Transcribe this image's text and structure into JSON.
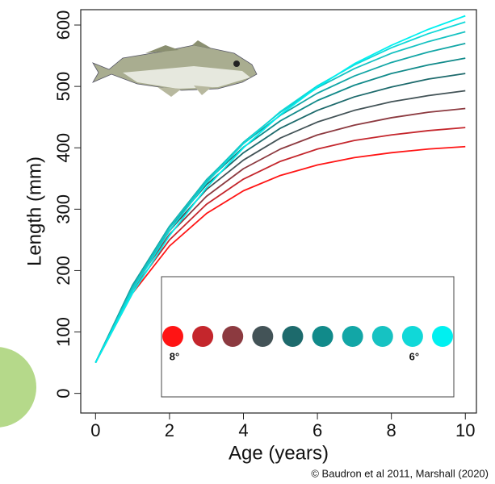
{
  "chart_data": {
    "type": "line",
    "xlabel": "Age (years)",
    "ylabel": "Length (mm)",
    "x": [
      0,
      1,
      2,
      3,
      4,
      5,
      6,
      7,
      8,
      9,
      10
    ],
    "xlim": [
      -0.4,
      10.3
    ],
    "xticks": [
      0,
      2,
      4,
      6,
      8,
      10
    ],
    "ylim": [
      -32,
      625
    ],
    "yticks": [
      0,
      100,
      200,
      300,
      400,
      500,
      600
    ],
    "series": [
      {
        "color": "#ff1414",
        "values": [
          50,
          163,
          240,
          293,
          330,
          355,
          372,
          384,
          392,
          398,
          402
        ]
      },
      {
        "color": "#c4262c",
        "values": [
          50,
          168,
          250,
          308,
          349,
          378,
          398,
          412,
          421,
          428,
          433
        ]
      },
      {
        "color": "#8c3a40",
        "values": [
          50,
          172,
          259,
          321,
          366,
          398,
          421,
          437,
          449,
          458,
          464
        ]
      },
      {
        "color": "#435357",
        "values": [
          50,
          174,
          265,
          332,
          380,
          416,
          442,
          461,
          475,
          485,
          493
        ]
      },
      {
        "color": "#1d6a6c",
        "values": [
          50,
          176,
          270,
          340,
          392,
          432,
          461,
          483,
          499,
          512,
          521
        ]
      },
      {
        "color": "#118a8a",
        "values": [
          50,
          176,
          272,
          345,
          401,
          444,
          477,
          502,
          521,
          535,
          546
        ]
      },
      {
        "color": "#12a6a6",
        "values": [
          50,
          175,
          272,
          348,
          407,
          453,
          489,
          517,
          539,
          556,
          570
        ]
      },
      {
        "color": "#16c2c2",
        "values": [
          50,
          172,
          270,
          347,
          409,
          458,
          498,
          529,
          554,
          573,
          589
        ]
      },
      {
        "color": "#10d8d8",
        "values": [
          50,
          168,
          265,
          343,
          407,
          459,
          501,
          535,
          563,
          586,
          605
        ]
      },
      {
        "color": "#00f0f0",
        "values": [
          50,
          163,
          257,
          335,
          400,
          454,
          499,
          537,
          567,
          593,
          615
        ]
      }
    ],
    "legend_labels": [
      "8°",
      "6°"
    ],
    "credit": "© Baudron et al 2011, Marshall (2020)"
  }
}
